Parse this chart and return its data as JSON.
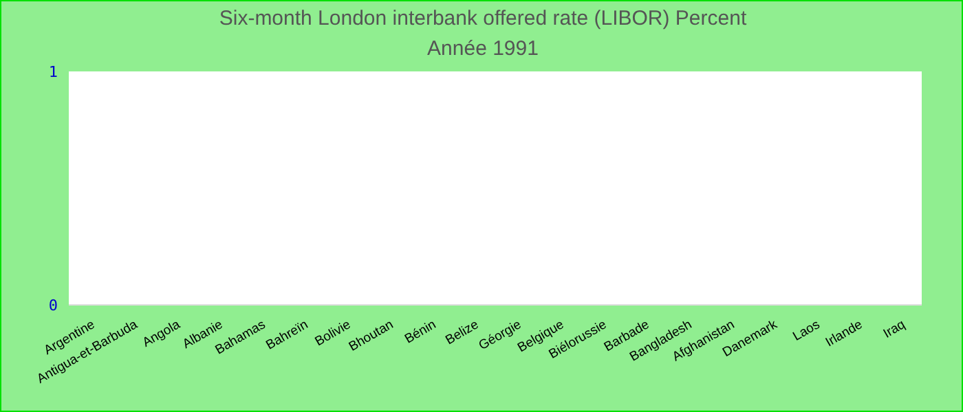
{
  "chart_data": {
    "type": "bar",
    "title": "Six-month London interbank offered rate (LIBOR)  Percent",
    "subtitle": "Année 1991",
    "categories": [
      "Argentine",
      "Antigua-et-Barbuda",
      "Angola",
      "Albanie",
      "Bahamas",
      "Bahreïn",
      "Bolivie",
      "Bhoutan",
      "Bénin",
      "Belize",
      "Géorgie",
      "Belgique",
      "Biélorussie",
      "Barbade",
      "Bangladesh",
      "Afghanistan",
      "Danemark",
      "Laos",
      "Irlande",
      "Iraq"
    ],
    "values": [
      null,
      null,
      null,
      null,
      null,
      null,
      null,
      null,
      null,
      null,
      null,
      null,
      null,
      null,
      null,
      null,
      null,
      null,
      null,
      null
    ],
    "ylim": [
      0,
      1
    ],
    "yticks": [
      0,
      1
    ],
    "grid": false,
    "legend": false
  }
}
